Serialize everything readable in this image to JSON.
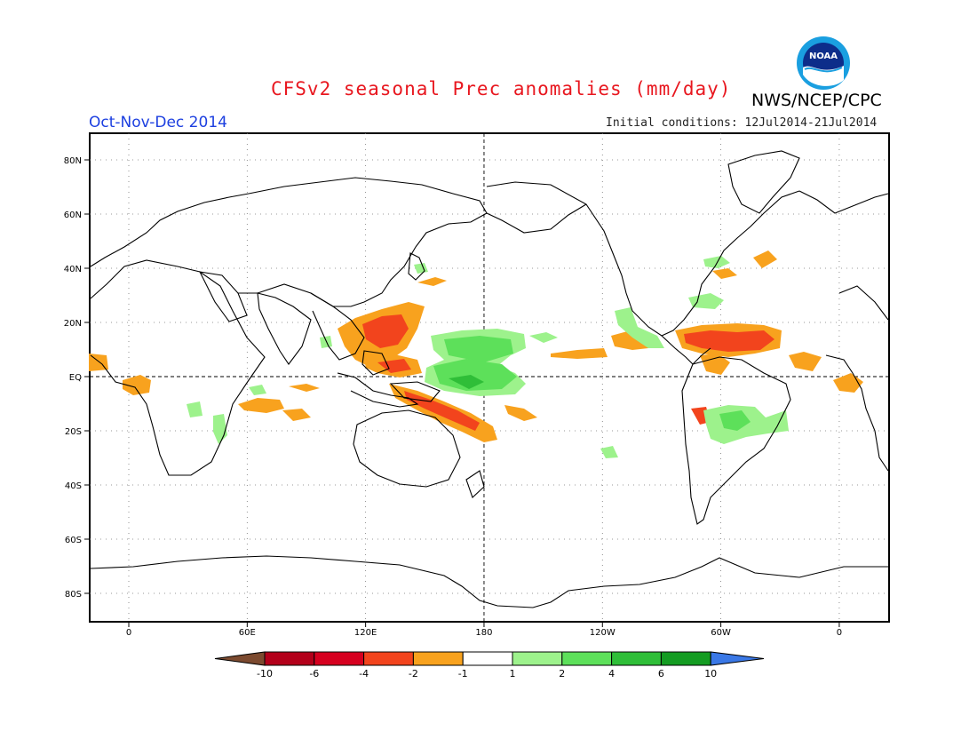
{
  "header": {
    "title": "CFSv2 seasonal Prec anomalies (mm/day)",
    "agency": "NWS/NCEP/CPC",
    "period": "Oct-Nov-Dec 2014",
    "initial_conditions": "Initial conditions: 12Jul2014-21Jul2014",
    "logo_text": "NOAA"
  },
  "map": {
    "lat_labels": [
      "80N",
      "60N",
      "40N",
      "20N",
      "EQ",
      "20S",
      "40S",
      "60S",
      "80S"
    ],
    "lon_labels": [
      "0",
      "60E",
      "120E",
      "180",
      "120W",
      "60W",
      "0"
    ]
  },
  "legend": {
    "bins": [
      {
        "color": "#7c4a2f"
      },
      {
        "color": "#b3001a"
      },
      {
        "color": "#d6001f"
      },
      {
        "color": "#f2441d"
      },
      {
        "color": "#f8a21e"
      },
      {
        "color": "#ffffff"
      },
      {
        "color": "#9df28c"
      },
      {
        "color": "#5de05a"
      },
      {
        "color": "#2fbe38"
      },
      {
        "color": "#149c22"
      },
      {
        "color": "#3a78e6"
      }
    ],
    "labels": [
      "-10",
      "-6",
      "-4",
      "-2",
      "-1",
      "1",
      "2",
      "4",
      "6",
      "10"
    ]
  },
  "colors": {
    "dry_strong": "#f2441d",
    "dry_weak": "#f8a21e",
    "wet_weak": "#9df28c",
    "wet_strong": "#2fbe38"
  }
}
